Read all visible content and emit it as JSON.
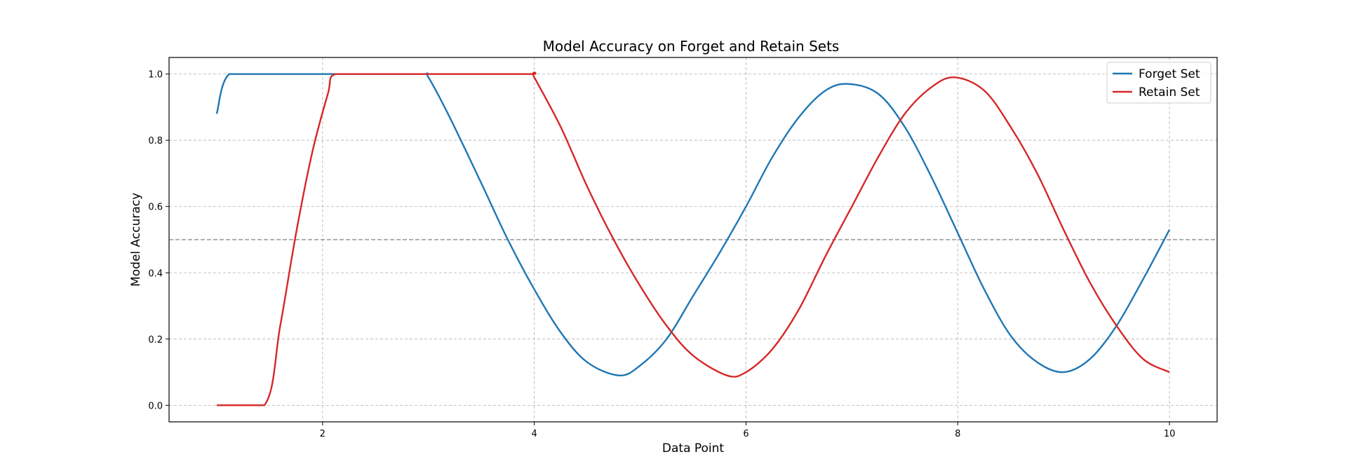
{
  "chart_data": {
    "type": "line",
    "title": "Model Accuracy on Forget and Retain Sets",
    "xlabel": "Data Point",
    "ylabel": "Model Accuracy",
    "xlim": [
      0.55,
      10.45
    ],
    "ylim": [
      -0.05,
      1.05
    ],
    "xticks": [
      2,
      4,
      6,
      8,
      10
    ],
    "yticks": [
      0.0,
      0.2,
      0.4,
      0.6,
      0.8,
      1.0
    ],
    "xtick_labels": [
      "2",
      "4",
      "6",
      "8",
      "10"
    ],
    "ytick_labels": [
      "0.0",
      "0.2",
      "0.4",
      "0.6",
      "0.8",
      "1.0"
    ],
    "grid": true,
    "legend_position": "top-right",
    "reference_line": {
      "y": 0.5,
      "style": "dashed",
      "color": "#808080"
    },
    "series": [
      {
        "name": "Forget Set",
        "color": "#1f77b4",
        "x": [
          1.0,
          1.12,
          1.5,
          2.0,
          2.5,
          2.95,
          3.0,
          3.2,
          3.5,
          3.75,
          4.0,
          4.25,
          4.5,
          4.8,
          5.0,
          5.25,
          5.5,
          5.75,
          6.0,
          6.25,
          6.5,
          6.75,
          6.97,
          7.25,
          7.5,
          7.75,
          8.0,
          8.25,
          8.5,
          8.75,
          9.0,
          9.25,
          9.5,
          9.75,
          10.0
        ],
        "values": [
          0.88,
          1.0,
          1.0,
          1.0,
          1.0,
          1.0,
          0.99,
          0.87,
          0.67,
          0.5,
          0.35,
          0.22,
          0.13,
          0.09,
          0.12,
          0.2,
          0.33,
          0.46,
          0.6,
          0.75,
          0.87,
          0.95,
          0.97,
          0.94,
          0.84,
          0.69,
          0.52,
          0.35,
          0.21,
          0.13,
          0.1,
          0.14,
          0.24,
          0.38,
          0.53
        ]
      },
      {
        "name": "Retain Set",
        "color": "#d62728",
        "x": [
          1.0,
          1.45,
          1.6,
          1.75,
          1.9,
          2.05,
          2.12,
          2.5,
          3.0,
          3.5,
          3.98,
          4.0,
          4.25,
          4.5,
          4.75,
          5.0,
          5.25,
          5.5,
          5.82,
          6.0,
          6.25,
          6.5,
          6.75,
          7.0,
          7.25,
          7.5,
          7.75,
          7.97,
          8.25,
          8.5,
          8.75,
          9.0,
          9.25,
          9.5,
          9.75,
          10.0
        ],
        "values": [
          0.0,
          0.0,
          0.24,
          0.52,
          0.76,
          0.94,
          1.0,
          1.0,
          1.0,
          1.0,
          1.0,
          0.99,
          0.84,
          0.66,
          0.5,
          0.36,
          0.24,
          0.15,
          0.09,
          0.1,
          0.17,
          0.29,
          0.45,
          0.6,
          0.75,
          0.88,
          0.96,
          0.99,
          0.95,
          0.84,
          0.7,
          0.53,
          0.37,
          0.24,
          0.14,
          0.1
        ]
      }
    ]
  }
}
